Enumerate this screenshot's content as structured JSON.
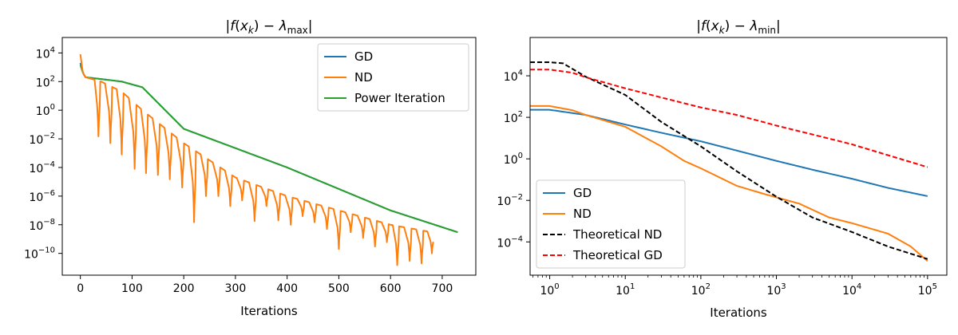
{
  "chart_data": [
    {
      "type": "line",
      "title": "|f(x_k) − λ_max|",
      "xlabel": "Iterations",
      "ylabel": "",
      "xscale": "linear",
      "yscale": "log",
      "xlim": [
        -35,
        765
      ],
      "ylim": [
        3e-12,
        120000.0
      ],
      "xticks": [
        0,
        100,
        200,
        300,
        400,
        500,
        600,
        700
      ],
      "xtick_labels": [
        "0",
        "100",
        "200",
        "300",
        "400",
        "500",
        "600",
        "700"
      ],
      "yticks_exp": [
        4,
        2,
        0,
        -2,
        -4,
        -6,
        -8,
        -10
      ],
      "legend_position": "top-right",
      "grid": false,
      "series": [
        {
          "name": "GD",
          "color": "#1f77b4",
          "style": "solid",
          "points": [
            [
              0,
              2000
            ],
            [
              5,
              400
            ],
            [
              10,
              200
            ],
            [
              40,
              150
            ],
            [
              80,
              100
            ],
            [
              120,
              40
            ],
            [
              200,
              0.05
            ],
            [
              400,
              0.0001
            ],
            [
              600,
              1e-07
            ],
            [
              730,
              3e-09
            ]
          ]
        },
        {
          "name": "ND",
          "color": "#ff7f0e",
          "style": "solid",
          "envelope": [
            [
              0,
              8000
            ],
            [
              5,
              400
            ],
            [
              10,
              200
            ],
            [
              40,
              100
            ],
            [
              80,
              20
            ],
            [
              120,
              1
            ],
            [
              200,
              0.005
            ],
            [
              300,
              2e-05
            ],
            [
              400,
              1e-06
            ],
            [
              500,
              1e-07
            ],
            [
              600,
              1e-08
            ],
            [
              680,
              3e-09
            ]
          ],
          "dips": [
            [
              35,
              0.015
            ],
            [
              58,
              0.005
            ],
            [
              80,
              0.0008
            ],
            [
              105,
              8e-05
            ],
            [
              127,
              4e-05
            ],
            [
              150,
              3e-05
            ],
            [
              173,
              1.5e-05
            ],
            [
              197,
              4e-06
            ],
            [
              220,
              1.5e-08
            ],
            [
              243,
              1e-06
            ],
            [
              267,
              1e-06
            ],
            [
              290,
              2e-07
            ],
            [
              313,
              5e-07
            ],
            [
              337,
              1.8e-08
            ],
            [
              360,
              2e-07
            ],
            [
              383,
              2e-08
            ],
            [
              407,
              1e-08
            ],
            [
              430,
              4e-08
            ],
            [
              453,
              1.5e-08
            ],
            [
              477,
              5e-09
            ],
            [
              500,
              2e-10
            ],
            [
              523,
              3e-09
            ],
            [
              547,
              1.2e-09
            ],
            [
              570,
              3e-10
            ],
            [
              593,
              6e-10
            ],
            [
              613,
              1.5e-11
            ],
            [
              637,
              3e-11
            ],
            [
              660,
              2e-11
            ],
            [
              680,
              1e-10
            ]
          ]
        },
        {
          "name": "Power Iteration",
          "color": "#2ca02c",
          "style": "solid",
          "points": [
            [
              0,
              1500
            ],
            [
              5,
              400
            ],
            [
              10,
              200
            ],
            [
              40,
              150
            ],
            [
              80,
              100
            ],
            [
              120,
              40
            ],
            [
              200,
              0.05
            ],
            [
              400,
              0.0001
            ],
            [
              600,
              1e-07
            ],
            [
              730,
              3e-09
            ]
          ]
        }
      ]
    },
    {
      "type": "line",
      "title": "|f(x_k) − λ_min|",
      "xlabel": "Iterations",
      "ylabel": "",
      "xscale": "log",
      "yscale": "log",
      "xlim": [
        0.55,
        180000
      ],
      "ylim": [
        2.5e-06,
        700000.0
      ],
      "xticks_exp": [
        0,
        1,
        2,
        3,
        4,
        5
      ],
      "yticks_exp": [
        4,
        2,
        0,
        -2,
        -4
      ],
      "legend_position": "lower-left",
      "grid": false,
      "series": [
        {
          "name": "GD",
          "color": "#1f77b4",
          "style": "solid",
          "points": [
            [
              0.55,
              230
            ],
            [
              1,
              230
            ],
            [
              3,
              130
            ],
            [
              10,
              45
            ],
            [
              30,
              18
            ],
            [
              100,
              7
            ],
            [
              300,
              2.5
            ],
            [
              1000,
              0.8
            ],
            [
              3000,
              0.3
            ],
            [
              10000,
              0.11
            ],
            [
              30000,
              0.04
            ],
            [
              100000,
              0.016
            ]
          ]
        },
        {
          "name": "ND",
          "color": "#ff7f0e",
          "style": "solid",
          "points": [
            [
              0.55,
              350
            ],
            [
              1,
              350
            ],
            [
              2,
              220
            ],
            [
              3,
              130
            ],
            [
              10,
              35
            ],
            [
              30,
              4
            ],
            [
              60,
              0.8
            ],
            [
              100,
              0.35
            ],
            [
              300,
              0.05
            ],
            [
              700,
              0.02
            ],
            [
              2000,
              0.007
            ],
            [
              5000,
              0.0015
            ],
            [
              10000,
              0.0008
            ],
            [
              30000,
              0.00025
            ],
            [
              60000,
              6e-05
            ],
            [
              100000,
              1.2e-05
            ]
          ]
        },
        {
          "name": "Theoretical ND",
          "color": "#000000",
          "style": "dashed",
          "points": [
            [
              0.55,
              45000
            ],
            [
              1,
              45000
            ],
            [
              1.5,
              40000
            ],
            [
              3,
              9000
            ],
            [
              10,
              1200
            ],
            [
              30,
              60
            ],
            [
              100,
              4
            ],
            [
              300,
              0.25
            ],
            [
              1000,
              0.015
            ],
            [
              3000,
              0.0015
            ],
            [
              10000,
              0.0003
            ],
            [
              30000,
              6e-05
            ],
            [
              100000,
              1.5e-05
            ]
          ]
        },
        {
          "name": "Theoretical GD",
          "color": "#ff0000",
          "style": "dashed",
          "points": [
            [
              0.55,
              20000
            ],
            [
              1,
              20000
            ],
            [
              2,
              14000
            ],
            [
              3,
              8500
            ],
            [
              10,
              2500
            ],
            [
              30,
              900
            ],
            [
              100,
              300
            ],
            [
              300,
              130
            ],
            [
              1000,
              40
            ],
            [
              3000,
              15
            ],
            [
              10000,
              5
            ],
            [
              30000,
              1.5
            ],
            [
              100000,
              0.4
            ]
          ]
        }
      ]
    }
  ]
}
